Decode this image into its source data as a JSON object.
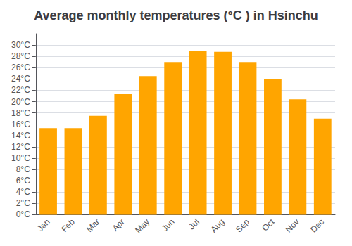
{
  "chart_data": {
    "type": "bar",
    "title": "Average monthly temperatures (°C ) in Hsinchu",
    "categories": [
      "Jan",
      "Feb",
      "Mar",
      "Apr",
      "May",
      "Jun",
      "Jul",
      "Aug",
      "Sep",
      "Oct",
      "Nov",
      "Dec"
    ],
    "values": [
      15.3,
      15.3,
      17.5,
      21.3,
      24.5,
      27.0,
      29.0,
      28.8,
      27.0,
      24.0,
      20.4,
      17.0
    ],
    "color": "#FFA500",
    "ylim": [
      0,
      32
    ],
    "yticks": [
      {
        "value": 0,
        "label": "0°C"
      },
      {
        "value": 2,
        "label": "2°C"
      },
      {
        "value": 4,
        "label": "4°C"
      },
      {
        "value": 6,
        "label": "6°C"
      },
      {
        "value": 8,
        "label": "8°C"
      },
      {
        "value": 10,
        "label": "10°C"
      },
      {
        "value": 12,
        "label": "12°C"
      },
      {
        "value": 14,
        "label": "14°C"
      },
      {
        "value": 16,
        "label": "16°C"
      },
      {
        "value": 18,
        "label": "18°C"
      },
      {
        "value": 20,
        "label": "20°C"
      },
      {
        "value": 22,
        "label": "22°C"
      },
      {
        "value": 24,
        "label": "24°C"
      },
      {
        "value": 26,
        "label": "26°C"
      },
      {
        "value": 28,
        "label": "28°C"
      },
      {
        "value": 30,
        "label": "30°C"
      }
    ],
    "grid": true
  }
}
